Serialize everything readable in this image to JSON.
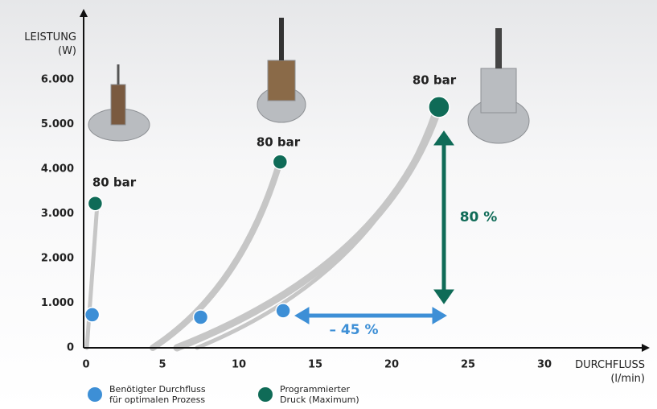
{
  "chart_data": {
    "type": "scatter",
    "y_label": "LEISTUNG (W)",
    "x_label": "DURCHFLUSS (l/min)",
    "xlim": [
      0,
      36.5
    ],
    "ylim": [
      0,
      7500
    ],
    "xticks": [
      0,
      5,
      10,
      15,
      20,
      25,
      30
    ],
    "yticks": [
      0,
      {
        "value": 1000,
        "label": "1.000"
      },
      {
        "value": 2000,
        "label": "2.000"
      },
      {
        "value": 3000,
        "label": "3.000"
      },
      {
        "value": 4000,
        "label": "4.000"
      },
      {
        "value": 5000,
        "label": "5.000"
      },
      {
        "value": 6000,
        "label": "6.000"
      }
    ],
    "series": [
      {
        "name": "Benötigter Durchfluss für optimalen Prozess",
        "color": "#3d8fd6",
        "x": [
          0.4,
          7.5,
          12.9
        ],
        "values": [
          740,
          685,
          830
        ]
      },
      {
        "name": "Programmierter Druck (Maximum)",
        "color": "#0f6b57",
        "x": [
          0.6,
          12.7,
          23.1
        ],
        "values": [
          3230,
          4160,
          5390
        ]
      }
    ],
    "annotations": [
      "80 bar",
      "80 bar",
      "80 bar",
      "80 %",
      "– 45 %"
    ]
  }
}
